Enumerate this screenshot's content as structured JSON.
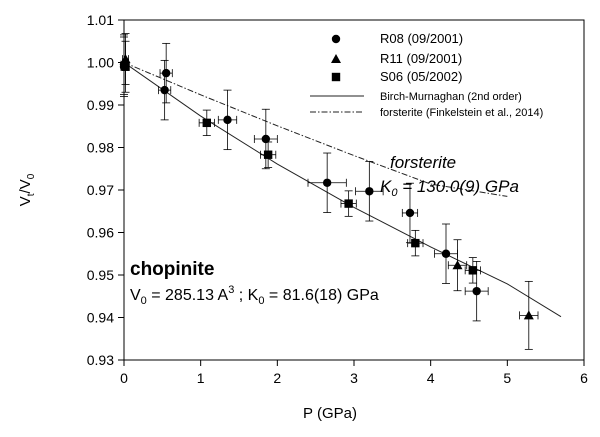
{
  "chart_data": {
    "type": "scatter",
    "xlabel": "P (GPa)",
    "ylabel_main": "V",
    "ylabel_main_sub": "t",
    "ylabel_div": "/V",
    "ylabel_div_sub": "0",
    "xlim": [
      0,
      6
    ],
    "ylim": [
      0.93,
      1.01
    ],
    "x_ticks": [
      0,
      1,
      2,
      3,
      4,
      5,
      6
    ],
    "x_tick_labels": [
      "0",
      "1",
      "2",
      "3",
      "4",
      "5",
      "6"
    ],
    "y_ticks": [
      0.93,
      0.94,
      0.95,
      0.96,
      0.97,
      0.98,
      0.99,
      1.0,
      1.01
    ],
    "y_tick_labels": [
      "0.93",
      "0.94",
      "0.95",
      "0.96",
      "0.97",
      "0.98",
      "0.99",
      "1.00",
      "1.01"
    ],
    "grid": false,
    "legend_position": "top-right",
    "series": [
      {
        "name": "R08 (09/2001)",
        "marker": "circle",
        "points": [
          {
            "x": 0.0,
            "y": 0.9995,
            "xerr": 0.04,
            "yerr": 0.007
          },
          {
            "x": 0.0,
            "y": 0.999,
            "xerr": 0.04,
            "yerr": 0.007
          },
          {
            "x": 0.55,
            "y": 0.9975,
            "xerr": 0.08,
            "yerr": 0.007
          },
          {
            "x": 0.53,
            "y": 0.9935,
            "xerr": 0.08,
            "yerr": 0.007
          },
          {
            "x": 1.35,
            "y": 0.9865,
            "xerr": 0.12,
            "yerr": 0.007
          },
          {
            "x": 1.85,
            "y": 0.982,
            "xerr": 0.15,
            "yerr": 0.007
          },
          {
            "x": 2.65,
            "y": 0.9717,
            "xerr": 0.25,
            "yerr": 0.007
          },
          {
            "x": 3.2,
            "y": 0.9697,
            "xerr": 0.18,
            "yerr": 0.007
          },
          {
            "x": 3.73,
            "y": 0.9646,
            "xerr": 0.1,
            "yerr": 0.007
          },
          {
            "x": 4.2,
            "y": 0.955,
            "xerr": 0.15,
            "yerr": 0.007
          },
          {
            "x": 4.6,
            "y": 0.9462,
            "xerr": 0.15,
            "yerr": 0.007
          }
        ]
      },
      {
        "name": "R11 (09/2001)",
        "marker": "triangle",
        "points": [
          {
            "x": 0.02,
            "y": 1.0008,
            "xerr": 0.04,
            "yerr": 0.006
          },
          {
            "x": 4.35,
            "y": 0.9523,
            "xerr": 0.12,
            "yerr": 0.006
          },
          {
            "x": 5.28,
            "y": 0.9405,
            "xerr": 0.12,
            "yerr": 0.008
          }
        ]
      },
      {
        "name": "S06 (05/2002)",
        "marker": "square",
        "points": [
          {
            "x": 0.02,
            "y": 0.999,
            "xerr": 0.04,
            "yerr": 0.006
          },
          {
            "x": 1.08,
            "y": 0.9858,
            "xerr": 0.1,
            "yerr": 0.003
          },
          {
            "x": 1.88,
            "y": 0.9783,
            "xerr": 0.1,
            "yerr": 0.003
          },
          {
            "x": 2.93,
            "y": 0.9668,
            "xerr": 0.1,
            "yerr": 0.003
          },
          {
            "x": 3.8,
            "y": 0.9575,
            "xerr": 0.1,
            "yerr": 0.003
          },
          {
            "x": 4.55,
            "y": 0.9511,
            "xerr": 0.1,
            "yerr": 0.003
          }
        ]
      }
    ],
    "lines": [
      {
        "name": "Birch-Murnaghan (2nd order)",
        "style": "solid",
        "points": [
          [
            0,
            1.0
          ],
          [
            1,
            0.9874
          ],
          [
            2,
            0.9761
          ],
          [
            3,
            0.9659
          ],
          [
            4,
            0.9566
          ],
          [
            5,
            0.9479
          ],
          [
            5.7,
            0.9402
          ]
        ]
      },
      {
        "name": "forsterite (Finkelstein et al., 2014)",
        "style": "dashdot",
        "points": [
          [
            0,
            1.0
          ],
          [
            1,
            0.9924
          ],
          [
            2,
            0.9851
          ],
          [
            3,
            0.9781
          ],
          [
            4,
            0.9714
          ],
          [
            5,
            0.9685
          ]
        ]
      }
    ],
    "annotations": {
      "forsterite_title": "forsterite",
      "forsterite_k_prefix": "K",
      "forsterite_k_sub": "0",
      "forsterite_k_value": " = 130.0(9) GPa",
      "chopinite_title": "chopinite",
      "chopinite_v_prefix": "V",
      "chopinite_v_sub": "0",
      "chopinite_v_value": " = 285.13 A",
      "chopinite_v_sup": "3",
      "chopinite_k_prefix": " ; K",
      "chopinite_k_sub": "0",
      "chopinite_k_value": " = 81.6(18) GPa"
    }
  }
}
